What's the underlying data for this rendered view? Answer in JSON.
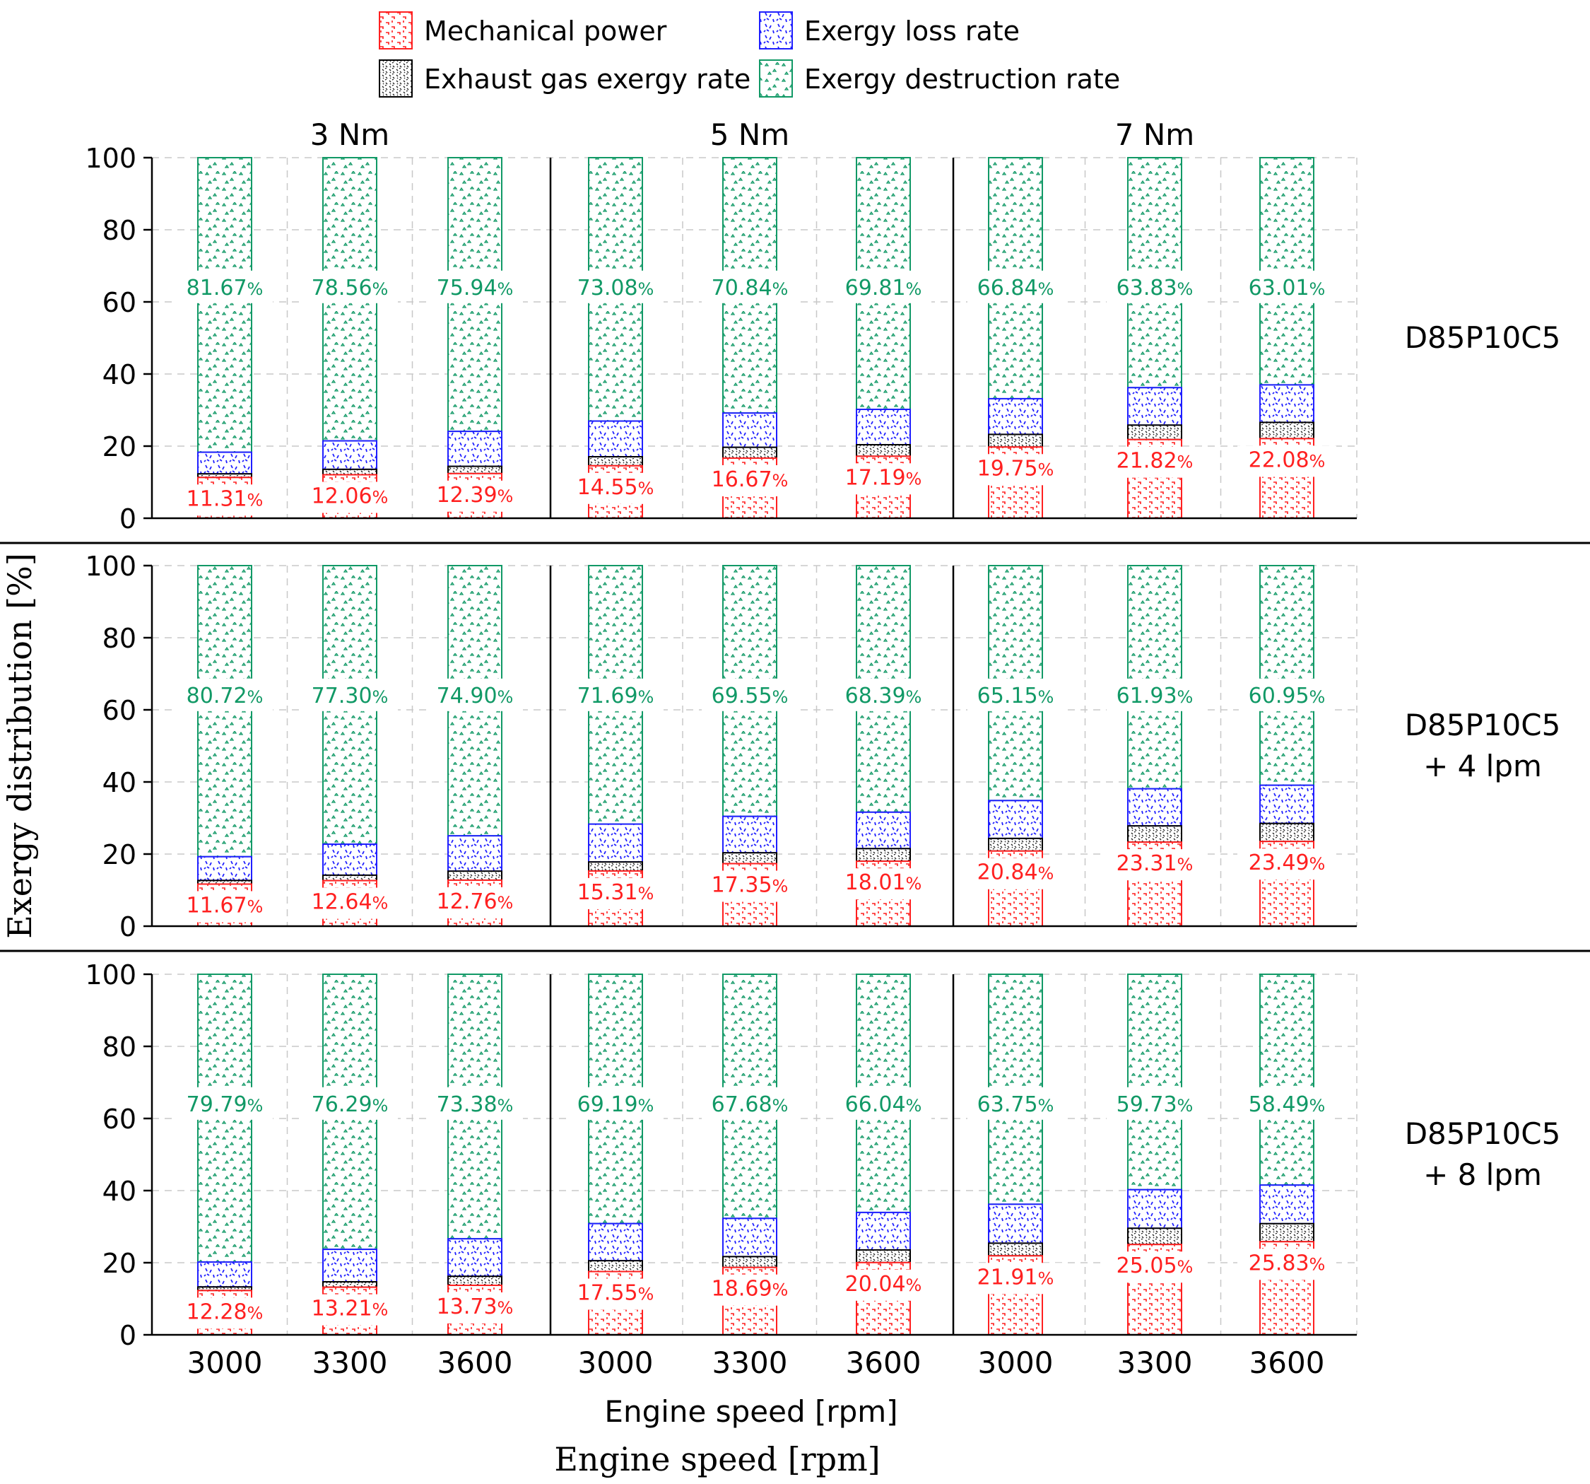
{
  "legend": [
    {
      "key": "mechanical",
      "label": "Mechanical power",
      "color": "#ff2020"
    },
    {
      "key": "loss",
      "label": "Exergy loss rate",
      "color": "#1f1fff"
    },
    {
      "key": "exhaust",
      "label": "Exhaust gas exergy rate",
      "color": "#000000"
    },
    {
      "key": "destruction",
      "label": "Exergy destruction rate",
      "color": "#119966"
    }
  ],
  "colors": {
    "mechanical": "#ff2020",
    "loss": "#1f1fff",
    "exhaust": "#000000",
    "destruction": "#119966",
    "grid": "#c8c8c8"
  },
  "chart_data": {
    "type": "bar",
    "stacked": true,
    "title": "",
    "ylabel": "Exergy distribution  [%]",
    "xlabel": "Engine speed [rpm]",
    "xlabel_repeat": "Engine speed [rpm]",
    "ylim": [
      0,
      100
    ],
    "yticks": [
      "0",
      "20",
      "40",
      "60",
      "80",
      "100"
    ],
    "groups": [
      "3 Nm",
      "5 Nm",
      "7 Nm"
    ],
    "categories": [
      "3000",
      "3300",
      "3600",
      "3000",
      "3300",
      "3600",
      "3000",
      "3300",
      "3600"
    ],
    "percent_suffix": "%",
    "panels": [
      {
        "label_lines": [
          "D85P10C5"
        ],
        "mechanical": [
          11.31,
          12.06,
          12.39,
          14.55,
          16.67,
          17.19,
          19.75,
          21.82,
          22.08
        ],
        "exhaust": [
          1.0,
          1.5,
          2.0,
          2.5,
          3.0,
          3.2,
          3.5,
          4.0,
          4.5
        ],
        "loss": [
          6.0,
          7.9,
          9.7,
          9.9,
          9.5,
          9.8,
          9.9,
          10.4,
          10.4
        ],
        "destruction": [
          81.67,
          78.56,
          75.94,
          73.08,
          70.84,
          69.81,
          66.84,
          63.83,
          63.01
        ],
        "mech_labels": [
          "11.31",
          "12.06",
          "12.39",
          "14.55",
          "16.67",
          "17.19",
          "19.75",
          "21.82",
          "22.08"
        ],
        "dest_labels": [
          "81.67",
          "78.56",
          "75.94",
          "73.08",
          "70.84",
          "69.81",
          "66.84",
          "63.83",
          "63.01"
        ]
      },
      {
        "label_lines": [
          "D85P10C5",
          "+ 4 lpm"
        ],
        "mechanical": [
          11.67,
          12.64,
          12.76,
          15.31,
          17.35,
          18.01,
          20.84,
          23.31,
          23.49
        ],
        "exhaust": [
          1.0,
          1.5,
          2.5,
          2.5,
          3.0,
          3.5,
          3.5,
          4.5,
          5.0
        ],
        "loss": [
          6.6,
          8.6,
          9.8,
          10.5,
          10.1,
          10.1,
          10.5,
          10.3,
          10.6
        ],
        "destruction": [
          80.72,
          77.3,
          74.9,
          71.69,
          69.55,
          68.39,
          65.15,
          61.93,
          60.95
        ],
        "mech_labels": [
          "11.67",
          "12.64",
          "12.76",
          "15.31",
          "17.35",
          "18.01",
          "20.84",
          "23.31",
          "23.49"
        ],
        "dest_labels": [
          "80.72",
          "77.30",
          "74.90",
          "71.69",
          "69.55",
          "68.39",
          "65.15",
          "61.93",
          "60.95"
        ]
      },
      {
        "label_lines": [
          "D85P10C5",
          "+ 8 lpm"
        ],
        "mechanical": [
          12.28,
          13.21,
          13.73,
          17.55,
          18.69,
          20.04,
          21.91,
          25.05,
          25.83
        ],
        "exhaust": [
          1.0,
          1.5,
          2.5,
          3.0,
          3.0,
          3.5,
          3.5,
          4.5,
          5.0
        ],
        "loss": [
          6.9,
          9.0,
          10.4,
          10.3,
          10.6,
          10.4,
          10.8,
          10.7,
          10.7
        ],
        "destruction": [
          79.79,
          76.29,
          73.38,
          69.19,
          67.68,
          66.04,
          63.75,
          59.73,
          58.49
        ],
        "mech_labels": [
          "12.28",
          "13.21",
          "13.73",
          "17.55",
          "18.69",
          "20.04",
          "21.91",
          "25.05",
          "25.83"
        ],
        "dest_labels": [
          "79.79",
          "76.29",
          "73.38",
          "69.19",
          "67.68",
          "66.04",
          "63.75",
          "59.73",
          "58.49"
        ]
      }
    ]
  }
}
